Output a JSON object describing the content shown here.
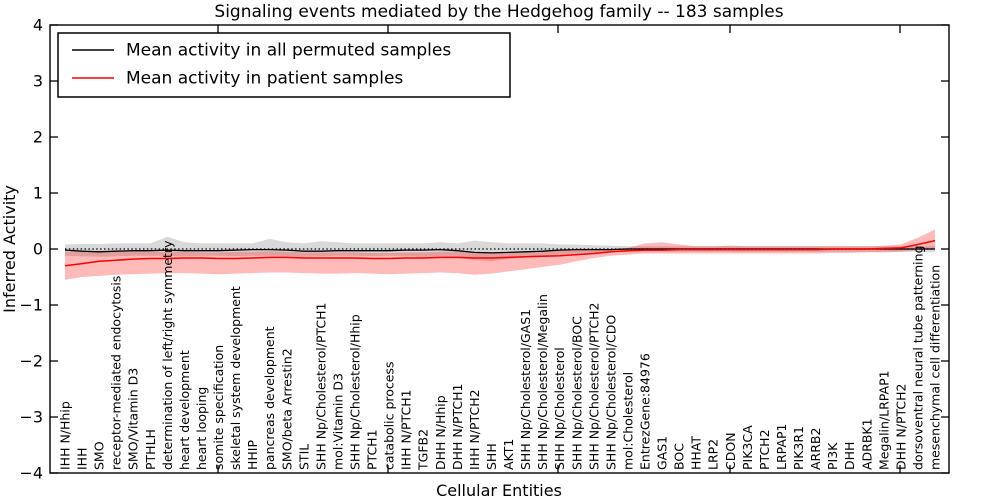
{
  "title": "Signaling events mediated by the Hedgehog family -- 183 samples",
  "axes": {
    "ylabel": "Inferred Activity",
    "xlabel": "Cellular Entities"
  },
  "legend": {
    "position": "upper left",
    "entries": [
      {
        "label": "Mean activity in all permuted samples",
        "color": "#000000"
      },
      {
        "label": "Mean activity in patient samples",
        "color": "#ff0000"
      }
    ]
  },
  "chart_data": {
    "type": "line",
    "title": "Signaling events mediated by the Hedgehog family -- 183 samples",
    "xlabel": "Cellular Entities",
    "ylabel": "Inferred Activity",
    "ylim": [
      -4,
      4
    ],
    "ytick_labels": [
      "4",
      "3",
      "2",
      "1",
      "0",
      "−1",
      "−2",
      "−3",
      "−4"
    ],
    "grid": false,
    "zero_line": {
      "style": "dotted",
      "color": "#000000",
      "y": 0
    },
    "categories": [
      "IHH N/Hhip",
      "IHH",
      "SMO",
      "receptor-mediated endocytosis",
      "SMO/Vitamin D3",
      "PTHLH",
      "determination of left/right symmetry",
      "heart development",
      "heart looping",
      "somite specification",
      "skeletal system development",
      "HHIP",
      "pancreas development",
      "SMO/beta Arrestin2",
      "STIL",
      "SHH Np/Cholesterol/PTCH1",
      "mol:Vitamin D3",
      "SHH Np/Cholesterol/Hhip",
      "PTCH1",
      "catabolic process",
      "IHH N/PTCH1",
      "TGFB2",
      "DHH N/Hhip",
      "DHH N/PTCH1",
      "IHH N/PTCH2",
      "SHH",
      "AKT1",
      "SHH Np/Cholesterol/GAS1",
      "SHH Np/Cholesterol/Megalin",
      "SHH Np/Cholesterol",
      "SHH Np/Cholesterol/BOC",
      "SHH Np/Cholesterol/PTCH2",
      "SHH Np/Cholesterol/CDO",
      "mol:Cholesterol",
      "EntrezGene:84976",
      "GAS1",
      "BOC",
      "HHAT",
      "LRP2",
      "CDON",
      "PIK3CA",
      "PTCH2",
      "LRPAP1",
      "PIK3R1",
      "ARRB2",
      "PI3K",
      "DHH",
      "ADRBK1",
      "Megalin/LRPAP1",
      "DHH N/PTCH2",
      "dorsoventral neural tube patterning",
      "mesenchymal cell differentiation"
    ],
    "series": [
      {
        "name": "Mean activity in all permuted samples",
        "color": "#000000",
        "values": [
          -0.02,
          -0.04,
          -0.05,
          -0.04,
          -0.03,
          -0.03,
          -0.02,
          -0.03,
          -0.03,
          -0.03,
          -0.02,
          -0.01,
          -0.01,
          -0.02,
          -0.04,
          -0.04,
          -0.03,
          -0.03,
          -0.03,
          -0.03,
          -0.02,
          -0.02,
          -0.01,
          -0.03,
          -0.06,
          -0.07,
          -0.06,
          -0.05,
          -0.04,
          -0.02,
          -0.01,
          -0.01,
          -0.01,
          0,
          0,
          0,
          0,
          0,
          0,
          0,
          0,
          0,
          0,
          0,
          0,
          0,
          0,
          0,
          0,
          0,
          0,
          0
        ]
      },
      {
        "name": "Mean activity in patient samples",
        "color": "#ff0000",
        "values": [
          -0.3,
          -0.26,
          -0.22,
          -0.2,
          -0.18,
          -0.17,
          -0.17,
          -0.16,
          -0.16,
          -0.17,
          -0.17,
          -0.16,
          -0.15,
          -0.15,
          -0.16,
          -0.16,
          -0.16,
          -0.16,
          -0.17,
          -0.17,
          -0.16,
          -0.16,
          -0.15,
          -0.15,
          -0.16,
          -0.16,
          -0.15,
          -0.14,
          -0.13,
          -0.12,
          -0.1,
          -0.08,
          -0.05,
          -0.03,
          -0.02,
          -0.02,
          -0.01,
          -0.01,
          -0.01,
          -0.01,
          -0.01,
          -0.01,
          -0.01,
          -0.01,
          -0.01,
          0,
          0,
          0,
          0.01,
          0.02,
          0.08,
          0.15
        ]
      }
    ],
    "bands": [
      {
        "name": "permuted-samples-range",
        "color": "rgba(128,128,128,0.30)",
        "upper": [
          0.08,
          0.09,
          0.09,
          0.1,
          0.1,
          0.1,
          0.22,
          0.12,
          0.1,
          0.1,
          0.1,
          0.1,
          0.18,
          0.12,
          0.1,
          0.14,
          0.12,
          0.1,
          0.1,
          0.1,
          0.1,
          0.1,
          0.12,
          0.1,
          0.15,
          0.12,
          0.1,
          0.1,
          0.1,
          0.08,
          0.08,
          0.07,
          0.06,
          0.05,
          0.05,
          0.05,
          0.05,
          0.05,
          0.05,
          0.05,
          0.05,
          0.05,
          0.05,
          0.05,
          0.05,
          0.05,
          0.05,
          0.05,
          0.05,
          0.05,
          0.05,
          0.06
        ],
        "lower": [
          -0.12,
          -0.13,
          -0.14,
          -0.13,
          -0.12,
          -0.12,
          -0.12,
          -0.13,
          -0.12,
          -0.12,
          -0.13,
          -0.12,
          -0.12,
          -0.13,
          -0.14,
          -0.13,
          -0.12,
          -0.12,
          -0.13,
          -0.12,
          -0.13,
          -0.14,
          -0.13,
          -0.15,
          -0.2,
          -0.22,
          -0.18,
          -0.15,
          -0.12,
          -0.1,
          -0.08,
          -0.07,
          -0.06,
          -0.05,
          -0.05,
          -0.05,
          -0.05,
          -0.05,
          -0.05,
          -0.05,
          -0.05,
          -0.05,
          -0.05,
          -0.05,
          -0.05,
          -0.05,
          -0.05,
          -0.05,
          -0.05,
          -0.05,
          -0.05,
          -0.06
        ]
      },
      {
        "name": "patient-samples-range",
        "color": "rgba(255,0,0,0.27)",
        "upper": [
          -0.05,
          -0.04,
          -0.03,
          -0.03,
          -0.04,
          -0.05,
          -0.05,
          -0.05,
          -0.06,
          -0.06,
          -0.05,
          -0.05,
          -0.04,
          -0.05,
          -0.06,
          -0.06,
          -0.06,
          -0.06,
          -0.07,
          -0.07,
          -0.06,
          -0.06,
          -0.05,
          -0.05,
          -0.06,
          -0.07,
          -0.06,
          -0.05,
          -0.04,
          -0.03,
          -0.02,
          -0.01,
          0,
          0.02,
          0.1,
          0.12,
          0.08,
          0.05,
          0.05,
          0.06,
          0.05,
          0.05,
          0.05,
          0.05,
          0.05,
          0.05,
          0.05,
          0.05,
          0.06,
          0.08,
          0.2,
          0.35
        ],
        "lower": [
          -0.55,
          -0.5,
          -0.48,
          -0.46,
          -0.45,
          -0.44,
          -0.43,
          -0.43,
          -0.44,
          -0.45,
          -0.44,
          -0.43,
          -0.42,
          -0.42,
          -0.43,
          -0.44,
          -0.44,
          -0.43,
          -0.44,
          -0.45,
          -0.44,
          -0.43,
          -0.42,
          -0.43,
          -0.46,
          -0.44,
          -0.4,
          -0.36,
          -0.32,
          -0.28,
          -0.22,
          -0.16,
          -0.12,
          -0.1,
          -0.08,
          -0.08,
          -0.08,
          -0.08,
          -0.08,
          -0.08,
          -0.08,
          -0.08,
          -0.08,
          -0.08,
          -0.08,
          -0.07,
          -0.07,
          -0.06,
          -0.06,
          -0.05,
          -0.02,
          0
        ]
      }
    ]
  }
}
